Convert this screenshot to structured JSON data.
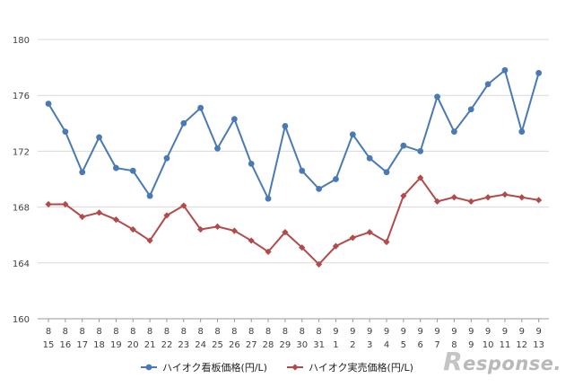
{
  "chart_data": {
    "type": "line",
    "categories": [
      [
        "8",
        "15"
      ],
      [
        "8",
        "16"
      ],
      [
        "8",
        "17"
      ],
      [
        "8",
        "18"
      ],
      [
        "8",
        "19"
      ],
      [
        "8",
        "20"
      ],
      [
        "8",
        "21"
      ],
      [
        "8",
        "22"
      ],
      [
        "8",
        "23"
      ],
      [
        "8",
        "24"
      ],
      [
        "8",
        "25"
      ],
      [
        "8",
        "26"
      ],
      [
        "8",
        "27"
      ],
      [
        "8",
        "28"
      ],
      [
        "8",
        "29"
      ],
      [
        "8",
        "30"
      ],
      [
        "8",
        "31"
      ],
      [
        "9",
        "1"
      ],
      [
        "9",
        "2"
      ],
      [
        "9",
        "3"
      ],
      [
        "9",
        "4"
      ],
      [
        "9",
        "5"
      ],
      [
        "9",
        "6"
      ],
      [
        "9",
        "7"
      ],
      [
        "9",
        "8"
      ],
      [
        "9",
        "9"
      ],
      [
        "9",
        "10"
      ],
      [
        "9",
        "11"
      ],
      [
        "9",
        "12"
      ],
      [
        "9",
        "13"
      ]
    ],
    "ylim": [
      160,
      180
    ],
    "yticks": [
      160,
      164,
      168,
      172,
      176,
      180
    ],
    "grid": true,
    "legend_position": "bottom",
    "series": [
      {
        "name": "ハイオク看板価格(円/L)",
        "color": "#4a7ab5",
        "marker": "circle",
        "values": [
          175.4,
          173.4,
          170.5,
          173.0,
          170.8,
          170.6,
          168.8,
          171.5,
          174.0,
          175.1,
          172.2,
          174.3,
          171.1,
          168.6,
          173.8,
          170.6,
          169.3,
          170.0,
          173.2,
          171.5,
          170.5,
          172.4,
          172.0,
          175.9,
          173.4,
          175.0,
          176.8,
          177.8,
          173.4,
          177.6
        ]
      },
      {
        "name": "ハイオク実売価格(円/L)",
        "color": "#b34a4a",
        "marker": "diamond",
        "values": [
          168.2,
          168.2,
          167.3,
          167.6,
          167.1,
          166.4,
          165.6,
          167.4,
          168.1,
          166.4,
          166.6,
          166.3,
          165.6,
          164.8,
          166.2,
          165.1,
          163.9,
          165.2,
          165.8,
          166.2,
          165.5,
          168.8,
          170.1,
          168.4,
          168.7,
          168.4,
          168.7,
          168.9,
          168.7,
          168.5
        ]
      }
    ]
  },
  "watermark": {
    "initial": "R",
    "rest": "esponse."
  }
}
